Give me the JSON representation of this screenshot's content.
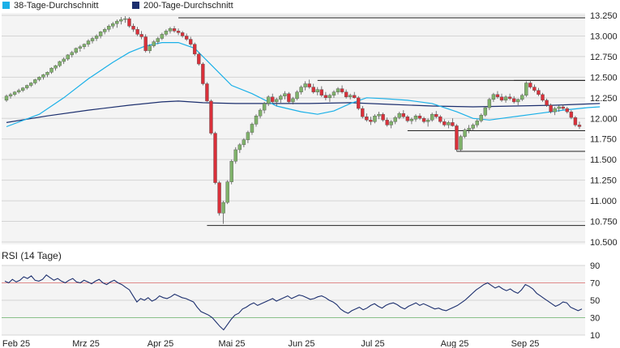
{
  "legend": [
    {
      "label": "38-Tage-Durchschnitt",
      "color": "#1ab0e8"
    },
    {
      "label": "200-Tage-Durchschnitt",
      "color": "#1c2f6e"
    }
  ],
  "colors": {
    "up": "#7fb26a",
    "down": "#d9303a",
    "grid": "#d4d4d4",
    "panel": "#f4f4f4",
    "rsi_line": "#1c2f6e",
    "rsi_upper": "#e08a8a",
    "rsi_lower": "#8ac08a"
  },
  "chart_data": [
    {
      "type": "candlestick",
      "x_labels": [
        "Feb 25",
        "Mrz 25",
        "Apr 25",
        "Mai 25",
        "Jun 25",
        "Jul 25",
        "Aug 25",
        "Sep 25"
      ],
      "y_ticks": [
        "13.250",
        "13.000",
        "12.750",
        "12.500",
        "12.250",
        "12.000",
        "11.750",
        "11.500",
        "11.250",
        "11.000",
        "10.750",
        "10.500"
      ],
      "ylim": [
        10500,
        13250
      ],
      "grid": true,
      "series": [
        {
          "name": "38-Tage-Durchschnitt",
          "points": [
            [
              0,
              11900
            ],
            [
              8,
              12050
            ],
            [
              14,
              12250
            ],
            [
              20,
              12480
            ],
            [
              26,
              12680
            ],
            [
              30,
              12800
            ],
            [
              34,
              12880
            ],
            [
              38,
              12920
            ],
            [
              42,
              12920
            ],
            [
              46,
              12850
            ],
            [
              50,
              12650
            ],
            [
              55,
              12400
            ],
            [
              60,
              12300
            ],
            [
              66,
              12150
            ],
            [
              72,
              12080
            ],
            [
              76,
              12050
            ],
            [
              80,
              12090
            ],
            [
              84,
              12180
            ],
            [
              88,
              12250
            ],
            [
              92,
              12240
            ],
            [
              98,
              12220
            ],
            [
              104,
              12180
            ],
            [
              110,
              12080
            ],
            [
              114,
              12000
            ],
            [
              118,
              11980
            ],
            [
              124,
              12020
            ],
            [
              130,
              12060
            ],
            [
              136,
              12100
            ],
            [
              142,
              12130
            ],
            [
              145,
              12140
            ]
          ]
        },
        {
          "name": "200-Tage-Durchschnitt",
          "points": [
            [
              0,
              11950
            ],
            [
              10,
              12030
            ],
            [
              20,
              12100
            ],
            [
              30,
              12160
            ],
            [
              38,
              12200
            ],
            [
              42,
              12210
            ],
            [
              48,
              12190
            ],
            [
              56,
              12180
            ],
            [
              64,
              12180
            ],
            [
              74,
              12180
            ],
            [
              84,
              12190
            ],
            [
              94,
              12170
            ],
            [
              104,
              12150
            ],
            [
              114,
              12140
            ],
            [
              124,
              12150
            ],
            [
              134,
              12160
            ],
            [
              145,
              12180
            ]
          ]
        }
      ],
      "candles": [
        [
          12220,
          12290,
          12200,
          12270
        ],
        [
          12270,
          12310,
          12240,
          12290
        ],
        [
          12290,
          12330,
          12270,
          12320
        ],
        [
          12320,
          12360,
          12300,
          12340
        ],
        [
          12340,
          12380,
          12320,
          12370
        ],
        [
          12370,
          12410,
          12350,
          12400
        ],
        [
          12400,
          12440,
          12380,
          12430
        ],
        [
          12430,
          12480,
          12410,
          12470
        ],
        [
          12470,
          12510,
          12450,
          12500
        ],
        [
          12500,
          12540,
          12470,
          12530
        ],
        [
          12530,
          12570,
          12500,
          12560
        ],
        [
          12560,
          12620,
          12540,
          12610
        ],
        [
          12610,
          12650,
          12580,
          12640
        ],
        [
          12640,
          12700,
          12620,
          12690
        ],
        [
          12690,
          12740,
          12660,
          12720
        ],
        [
          12720,
          12780,
          12700,
          12770
        ],
        [
          12770,
          12820,
          12740,
          12800
        ],
        [
          12800,
          12860,
          12780,
          12850
        ],
        [
          12850,
          12890,
          12810,
          12870
        ],
        [
          12870,
          12910,
          12840,
          12900
        ],
        [
          12900,
          12960,
          12870,
          12940
        ],
        [
          12940,
          12990,
          12910,
          12970
        ],
        [
          12970,
          13020,
          12940,
          13000
        ],
        [
          13000,
          13060,
          12970,
          13050
        ],
        [
          13050,
          13100,
          13020,
          13080
        ],
        [
          13080,
          13140,
          13050,
          13120
        ],
        [
          13120,
          13170,
          13090,
          13150
        ],
        [
          13150,
          13200,
          13100,
          13180
        ],
        [
          13180,
          13230,
          13140,
          13200
        ],
        [
          13200,
          13240,
          13160,
          13210
        ],
        [
          13210,
          13230,
          13100,
          13120
        ],
        [
          13120,
          13150,
          13050,
          13080
        ],
        [
          13080,
          13110,
          13000,
          13020
        ],
        [
          13020,
          13060,
          12960,
          12990
        ],
        [
          12990,
          13020,
          12800,
          12820
        ],
        [
          12820,
          12900,
          12790,
          12880
        ],
        [
          12880,
          12950,
          12860,
          12930
        ],
        [
          12930,
          12990,
          12900,
          12970
        ],
        [
          12970,
          13040,
          12950,
          13020
        ],
        [
          13020,
          13080,
          13000,
          13060
        ],
        [
          13060,
          13110,
          13030,
          13090
        ],
        [
          13090,
          13120,
          13040,
          13060
        ],
        [
          13060,
          13090,
          13010,
          13040
        ],
        [
          13040,
          13060,
          12980,
          13000
        ],
        [
          13000,
          13030,
          12940,
          12960
        ],
        [
          12960,
          12990,
          12880,
          12900
        ],
        [
          12900,
          12920,
          12760,
          12780
        ],
        [
          12780,
          12800,
          12640,
          12660
        ],
        [
          12660,
          12680,
          12400,
          12420
        ],
        [
          12420,
          12440,
          12200,
          12210
        ],
        [
          12210,
          12230,
          11800,
          11820
        ],
        [
          11820,
          11840,
          11200,
          11220
        ],
        [
          11220,
          11240,
          10820,
          10850
        ],
        [
          10850,
          11000,
          10720,
          10980
        ],
        [
          10980,
          11250,
          10960,
          11230
        ],
        [
          11230,
          11500,
          11200,
          11480
        ],
        [
          11480,
          11650,
          11450,
          11620
        ],
        [
          11620,
          11700,
          11580,
          11680
        ],
        [
          11680,
          11760,
          11650,
          11740
        ],
        [
          11740,
          11850,
          11700,
          11830
        ],
        [
          11830,
          11950,
          11800,
          11930
        ],
        [
          11930,
          12050,
          11900,
          12030
        ],
        [
          12030,
          12120,
          12000,
          12100
        ],
        [
          12100,
          12200,
          12060,
          12180
        ],
        [
          12180,
          12280,
          12150,
          12260
        ],
        [
          12260,
          12300,
          12180,
          12200
        ],
        [
          12200,
          12250,
          12150,
          12230
        ],
        [
          12230,
          12290,
          12190,
          12270
        ],
        [
          12270,
          12330,
          12230,
          12300
        ],
        [
          12300,
          12320,
          12180,
          12200
        ],
        [
          12200,
          12260,
          12170,
          12240
        ],
        [
          12240,
          12340,
          12220,
          12320
        ],
        [
          12320,
          12400,
          12290,
          12380
        ],
        [
          12380,
          12450,
          12340,
          12420
        ],
        [
          12420,
          12470,
          12360,
          12380
        ],
        [
          12380,
          12420,
          12300,
          12320
        ],
        [
          12320,
          12380,
          12280,
          12350
        ],
        [
          12350,
          12390,
          12260,
          12280
        ],
        [
          12280,
          12320,
          12220,
          12250
        ],
        [
          12250,
          12300,
          12200,
          12280
        ],
        [
          12280,
          12340,
          12250,
          12320
        ],
        [
          12320,
          12380,
          12290,
          12360
        ],
        [
          12360,
          12400,
          12300,
          12320
        ],
        [
          12320,
          12350,
          12240,
          12260
        ],
        [
          12260,
          12300,
          12230,
          12280
        ],
        [
          12280,
          12320,
          12240,
          12250
        ],
        [
          12250,
          12270,
          12100,
          12120
        ],
        [
          12120,
          12150,
          12000,
          12020
        ],
        [
          12020,
          12060,
          11960,
          11980
        ],
        [
          11980,
          12020,
          11920,
          11960
        ],
        [
          11960,
          12050,
          11940,
          12030
        ],
        [
          12030,
          12080,
          11990,
          12050
        ],
        [
          12050,
          12070,
          11960,
          11980
        ],
        [
          11980,
          12010,
          11900,
          11920
        ],
        [
          11920,
          11980,
          11880,
          11960
        ],
        [
          11960,
          12030,
          11930,
          12010
        ],
        [
          12010,
          12080,
          11990,
          12060
        ],
        [
          12060,
          12100,
          12000,
          12020
        ],
        [
          12020,
          12040,
          11950,
          11970
        ],
        [
          11970,
          12010,
          11930,
          11990
        ],
        [
          11990,
          12050,
          11960,
          12030
        ],
        [
          12030,
          12060,
          11980,
          12000
        ],
        [
          12000,
          12020,
          11940,
          11960
        ],
        [
          11960,
          12000,
          11900,
          11980
        ],
        [
          11980,
          12070,
          11960,
          12050
        ],
        [
          12050,
          12090,
          12000,
          12020
        ],
        [
          12020,
          12040,
          11940,
          11960
        ],
        [
          11960,
          11990,
          11900,
          11920
        ],
        [
          11920,
          11970,
          11880,
          11950
        ],
        [
          11950,
          12000,
          11900,
          11910
        ],
        [
          11910,
          11930,
          11600,
          11620
        ],
        [
          11620,
          11800,
          11600,
          11780
        ],
        [
          11780,
          11880,
          11760,
          11860
        ],
        [
          11860,
          11920,
          11820,
          11880
        ],
        [
          11880,
          11940,
          11850,
          11920
        ],
        [
          11920,
          11990,
          11890,
          11970
        ],
        [
          11970,
          12060,
          11950,
          12040
        ],
        [
          12040,
          12150,
          12020,
          12130
        ],
        [
          12130,
          12250,
          12100,
          12230
        ],
        [
          12230,
          12310,
          12200,
          12290
        ],
        [
          12290,
          12330,
          12240,
          12260
        ],
        [
          12260,
          12300,
          12200,
          12220
        ],
        [
          12220,
          12280,
          12190,
          12260
        ],
        [
          12260,
          12300,
          12220,
          12240
        ],
        [
          12240,
          12270,
          12180,
          12200
        ],
        [
          12200,
          12240,
          12160,
          12230
        ],
        [
          12230,
          12300,
          12210,
          12280
        ],
        [
          12280,
          12450,
          12260,
          12430
        ],
        [
          12430,
          12460,
          12360,
          12380
        ],
        [
          12380,
          12410,
          12320,
          12340
        ],
        [
          12340,
          12370,
          12270,
          12290
        ],
        [
          12290,
          12310,
          12200,
          12220
        ],
        [
          12220,
          12240,
          12140,
          12160
        ],
        [
          12160,
          12180,
          12060,
          12080
        ],
        [
          12080,
          12140,
          12040,
          12120
        ],
        [
          12120,
          12160,
          12080,
          12140
        ],
        [
          12140,
          12170,
          12100,
          12120
        ],
        [
          12120,
          12140,
          12060,
          12080
        ],
        [
          12080,
          12100,
          11990,
          12010
        ],
        [
          12010,
          12030,
          11900,
          11920
        ],
        [
          11920,
          11960,
          11870,
          11900
        ]
      ],
      "support_lines": [
        {
          "y": 13220,
          "from": 42
        },
        {
          "y": 12460,
          "from": 76
        },
        {
          "y": 12460,
          "from": 124
        },
        {
          "y": 11600,
          "from": 110
        },
        {
          "y": 10700,
          "from": 49
        },
        {
          "y": 11850,
          "from": 98
        }
      ]
    },
    {
      "type": "line",
      "title": "RSI (14 Tage)",
      "y_ticks": [
        "90",
        "70",
        "50",
        "30",
        "10"
      ],
      "ylim": [
        10,
        90
      ],
      "bands": [
        70,
        30
      ],
      "values": [
        72,
        70,
        74,
        71,
        73,
        77,
        75,
        78,
        73,
        72,
        74,
        79,
        76,
        73,
        75,
        72,
        70,
        73,
        75,
        71,
        70,
        73,
        71,
        69,
        72,
        74,
        70,
        68,
        71,
        73,
        70,
        68,
        65,
        62,
        55,
        48,
        52,
        50,
        53,
        49,
        51,
        55,
        53,
        52,
        54,
        57,
        55,
        53,
        52,
        50,
        48,
        42,
        37,
        35,
        33,
        30,
        25,
        20,
        16,
        22,
        28,
        33,
        35,
        40,
        42,
        45,
        47,
        44,
        46,
        48,
        50,
        52,
        49,
        51,
        53,
        55,
        52,
        54,
        56,
        55,
        53,
        51,
        52,
        54,
        55,
        53,
        50,
        48,
        45,
        40,
        37,
        35,
        38,
        40,
        42,
        39,
        41,
        44,
        46,
        43,
        41,
        44,
        46,
        47,
        45,
        42,
        40,
        43,
        45,
        47,
        44,
        46,
        44,
        42,
        40,
        41,
        39,
        38,
        40,
        42,
        44,
        47,
        50,
        54,
        58,
        62,
        65,
        68,
        70,
        67,
        64,
        66,
        63,
        61,
        63,
        60,
        58,
        62,
        68,
        66,
        63,
        58,
        55,
        52,
        49,
        46,
        43,
        45,
        48,
        47,
        42,
        40,
        38,
        40
      ]
    }
  ]
}
